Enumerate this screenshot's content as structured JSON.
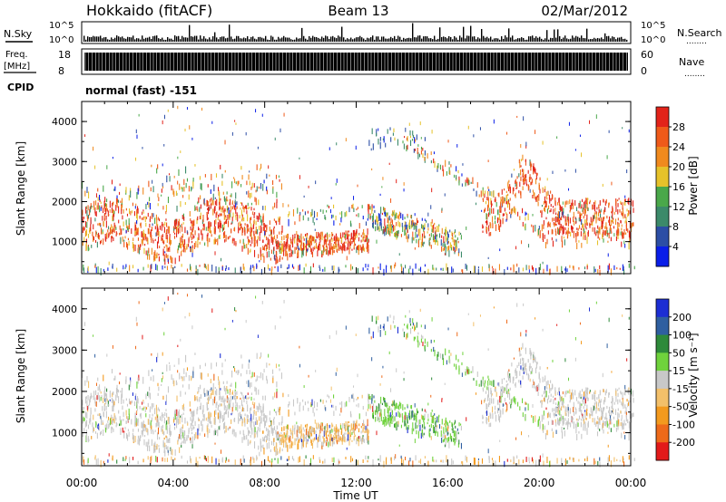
{
  "header": {
    "station": "Hokkaido (fitACF)",
    "beam": "Beam 13",
    "date": "02/Mar/2012"
  },
  "status_panels": {
    "nsky_label": "N.Sky",
    "nsearch_label": "N.Search",
    "freq_label_line1": "Freq.",
    "freq_label_line2": "[MHz]",
    "nave_label": "Nave",
    "cpid_label": "CPID",
    "nsky_ticks": [
      "10^5",
      "10^0"
    ],
    "nsearch_ticks": [
      "10^5",
      "10^0"
    ],
    "freq_ticks": [
      "18",
      "8"
    ],
    "nave_ticks": [
      "60",
      "0"
    ],
    "cpid_text": "normal (fast) -151",
    "dotted_legend": "........"
  },
  "chart_data": [
    {
      "type": "heatmap",
      "panel": "power",
      "ylabel": "Slant Range [km]",
      "y_ticks": [
        1000,
        2000,
        3000,
        4000
      ],
      "ylim": [
        200,
        4500
      ],
      "xlim": [
        0,
        24
      ],
      "colorbar": {
        "label": "Power [dB]",
        "tick_labels": [
          "4",
          "8",
          "12",
          "16",
          "20",
          "24",
          "28"
        ],
        "colors": [
          "#0a1ee8",
          "#2c4ea5",
          "#3c8a6a",
          "#4aa84a",
          "#e6c22a",
          "#f08a1e",
          "#ef5a1a",
          "#e2231a"
        ]
      }
    },
    {
      "type": "heatmap",
      "panel": "velocity",
      "ylabel": "Slant Range [km]",
      "y_ticks": [
        1000,
        2000,
        3000,
        4000
      ],
      "ylim": [
        200,
        4500
      ],
      "xlim": [
        0,
        24
      ],
      "xlabel": "Time UT",
      "x_tick_labels": [
        "00:00",
        "04:00",
        "08:00",
        "12:00",
        "16:00",
        "20:00",
        "00:00"
      ],
      "colorbar": {
        "label": "Velocity [m s⁻¹]",
        "tick_labels": [
          "200",
          "100",
          "50",
          "15",
          "-15",
          "-50",
          "-100",
          "-200"
        ],
        "colors": [
          "#1c2ed4",
          "#2f5fa0",
          "#2e8a3a",
          "#6fd23c",
          "#c8c8c8",
          "#f3c06a",
          "#f39a1e",
          "#ee6a1a",
          "#e21a1a"
        ]
      }
    }
  ]
}
